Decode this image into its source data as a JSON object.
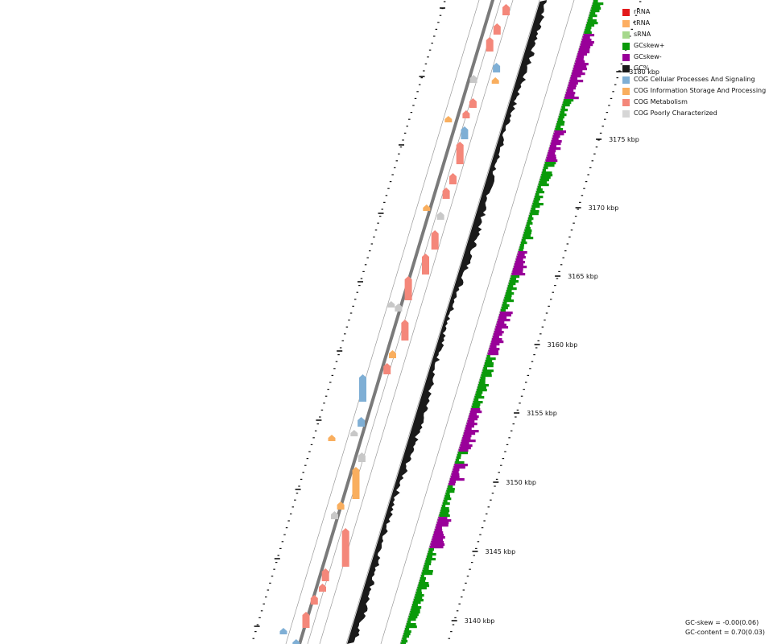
{
  "legend": {
    "items": [
      {
        "label": "rRNA",
        "color": "#e31a1c"
      },
      {
        "label": "tRNA",
        "color": "#fdae61"
      },
      {
        "label": "sRNA",
        "color": "#a6d88c"
      },
      {
        "label": "GCskew+",
        "color": "#0a9a0a"
      },
      {
        "label": "GCskew-",
        "color": "#990099"
      },
      {
        "label": "GC%",
        "color": "#1a1a1a"
      },
      {
        "label": "COG Cellular Processes And Signaling",
        "color": "#7fafd5"
      },
      {
        "label": "COG Information Storage And Processing",
        "color": "#f9ae5e"
      },
      {
        "label": "COG Metabolism",
        "color": "#f4877a"
      },
      {
        "label": "COG Poorly Characterized",
        "color": "#d6d6d6"
      }
    ]
  },
  "ruler": {
    "unit": "kbp",
    "labels": [
      "3140 kbp",
      "3145 kbp",
      "3150 kbp",
      "3155 kbp",
      "3160 kbp",
      "3165 kbp",
      "3170 kbp",
      "3175 kbp",
      "3180 kbp"
    ]
  },
  "stats": {
    "gc_skew": "GC-skew = -0.00(0.06)",
    "gc_content": "GC-content = 0.70(0.03)"
  }
}
